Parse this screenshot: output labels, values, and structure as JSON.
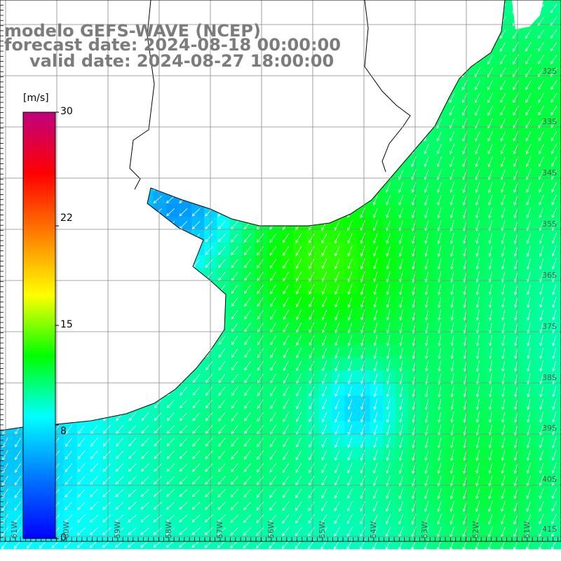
{
  "title": {
    "line1": "modelo GEFS-WAVE (NCEP)",
    "line2": "forecast date: 2024-08-18 00:00:00",
    "line3": "valid date: 2024-08-27 18:00:00"
  },
  "colorbar": {
    "unit": "[m/s]",
    "min": 0,
    "max": 30,
    "ticks": [
      "30",
      "22",
      "15",
      "8",
      "0"
    ],
    "tick_values": [
      30,
      22,
      15,
      8,
      0
    ],
    "stops": [
      "#0000ff",
      "#0077ff",
      "#00ffff",
      "#00ff00",
      "#ffff00",
      "#ff7f00",
      "#ff0000",
      "#c0007f"
    ]
  },
  "map": {
    "land_color": "#ffffff",
    "coast_color": "#000000",
    "grid_color": "#888888",
    "arrow_color": "#ffffff",
    "lat_labels": [
      "32S",
      "33S",
      "34S",
      "35S",
      "36S",
      "37S",
      "38S",
      "39S",
      "40S",
      "41S"
    ],
    "lon_labels": [
      "61W",
      "60W",
      "59W",
      "58W",
      "57W",
      "56W",
      "55W",
      "54W",
      "53W",
      "52W",
      "51W"
    ]
  }
}
